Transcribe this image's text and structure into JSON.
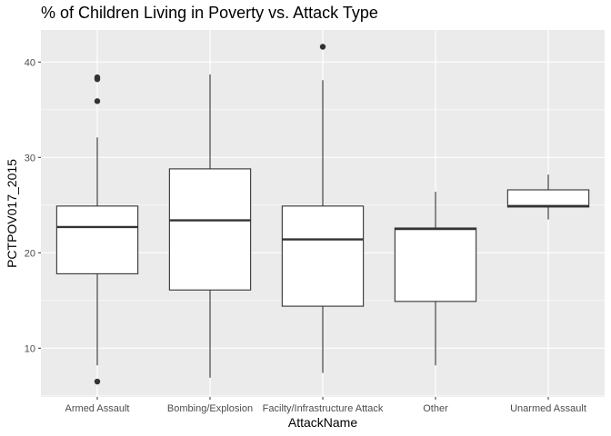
{
  "chart_data": {
    "type": "boxplot",
    "title": "% of Children Living in Poverty vs. Attack Type",
    "xlabel": "AttackName",
    "ylabel": "PCTPOV017_2015",
    "ylim": [
      5,
      44
    ],
    "yticks": [
      10,
      20,
      30,
      40
    ],
    "grid": true,
    "colors": {
      "panel": "#ebebeb",
      "grid": "#ffffff",
      "box_fill": "#ffffff",
      "stroke": "#333333"
    },
    "categories": [
      "Armed Assault",
      "Bombing/Explosion",
      "Facilty/Infrastructure Attack",
      "Other",
      "Unarmed Assault"
    ],
    "boxes": [
      {
        "category": "Armed Assault",
        "whisker_low": 8.2,
        "q1": 17.8,
        "median": 22.7,
        "q3": 24.9,
        "whisker_high": 32.1,
        "outliers": [
          38.4,
          38.2,
          35.9,
          6.5
        ]
      },
      {
        "category": "Bombing/Explosion",
        "whisker_low": 6.9,
        "q1": 16.1,
        "median": 23.4,
        "q3": 28.8,
        "whisker_high": 38.7,
        "outliers": []
      },
      {
        "category": "Facilty/Infrastructure Attack",
        "whisker_low": 7.4,
        "q1": 14.4,
        "median": 21.4,
        "q3": 24.9,
        "whisker_high": 38.1,
        "outliers": [
          41.6
        ]
      },
      {
        "category": "Other",
        "whisker_low": 8.2,
        "q1": 14.9,
        "median": 22.5,
        "q3": 22.6,
        "whisker_high": 26.4,
        "outliers": []
      },
      {
        "category": "Unarmed Assault",
        "whisker_low": 23.5,
        "q1": 24.8,
        "median": 24.9,
        "q3": 26.6,
        "whisker_high": 28.2,
        "outliers": []
      }
    ]
  }
}
